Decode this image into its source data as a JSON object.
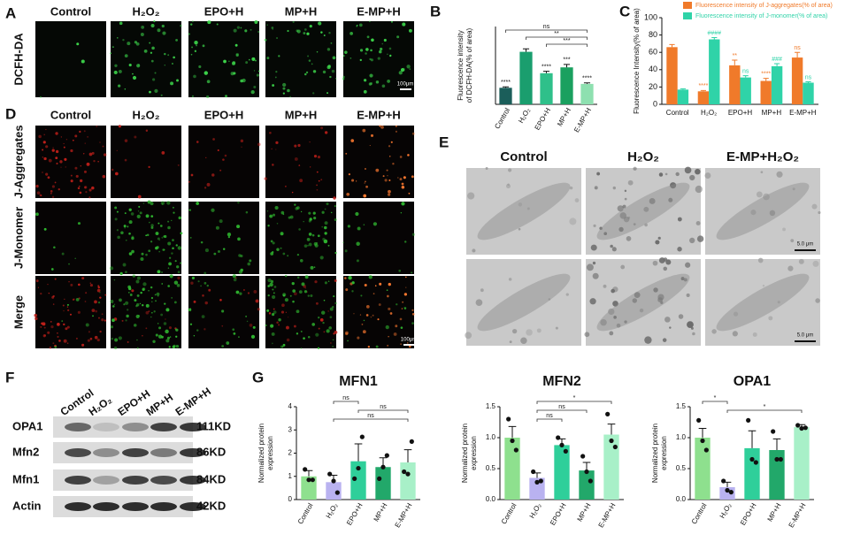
{
  "figure": {
    "panel_labels": [
      "A",
      "B",
      "C",
      "D",
      "E",
      "F",
      "G"
    ],
    "panel_a": {
      "columns": [
        "Control",
        "H₂O₂",
        "EPO+H",
        "MP+H",
        "E-MP+H"
      ],
      "row_label": "DCFH-DA",
      "scale_bar": "100μm"
    },
    "panel_d": {
      "columns": [
        "Control",
        "H₂O₂",
        "EPO+H",
        "MP+H",
        "E-MP+H"
      ],
      "rows": [
        "J-Aggregates",
        "J-Monomer",
        "Merge"
      ],
      "scale_bar": "100μm"
    },
    "panel_e": {
      "columns": [
        "Control",
        "H₂O₂",
        "E-MP+H₂O₂"
      ],
      "scale_bars": [
        "5.0 μm",
        "5.0 μm"
      ]
    },
    "panel_f": {
      "columns": [
        "Control",
        "H₂O₂",
        "EPO+H",
        "MP+H",
        "E-MP+H"
      ],
      "rows": [
        "OPA1",
        "Mfn2",
        "Mfn1",
        "Actin"
      ],
      "sizes": [
        "111KD",
        "86KD",
        "84KD",
        "42KD"
      ]
    }
  },
  "chart_data": [
    {
      "type": "bar",
      "y_label": [
        "Fluorescence intensity",
        "of DCFH-DA(% of area)"
      ],
      "categories": [
        "Control",
        "H₂O₂",
        "EPO+H",
        "MP+H",
        "E-MP+H"
      ],
      "values": [
        17,
        54,
        32,
        38,
        21
      ],
      "errors": [
        1,
        3,
        2,
        3,
        1
      ],
      "colors": [
        "#1b5e5a",
        "#1a9e6e",
        "#2fc08a",
        "#1aa05f",
        "#8ee0b0"
      ],
      "significance": [
        "****",
        null,
        "****",
        "***",
        "****"
      ],
      "comparisons": [
        {
          "pair": [
            0,
            4
          ],
          "label": "ns"
        },
        {
          "pair": [
            1,
            4
          ],
          "label": "**"
        },
        {
          "pair": [
            2,
            4
          ],
          "label": "***"
        }
      ],
      "ylim": [
        0,
        80
      ]
    },
    {
      "type": "bar",
      "y_label": [
        "Fluorescence Intensity(% of area)"
      ],
      "categories": [
        "Control",
        "H₂O₂",
        "EPO+H",
        "MP+H",
        "E-MP+H"
      ],
      "series": [
        {
          "name": "Fluorescence intensity of J-aggregates(% of area)",
          "color": "#f07a2a",
          "values": [
            66,
            15,
            45,
            27,
            54
          ],
          "errors": [
            3,
            1,
            6,
            3,
            6
          ],
          "significance": [
            null,
            "****",
            "**",
            "****",
            "ns"
          ]
        },
        {
          "name": "Fluorescence intensity of J-monomer(% of area)",
          "color": "#2fd3a8",
          "values": [
            17,
            75,
            31,
            44,
            25
          ],
          "errors": [
            1,
            2,
            2,
            3,
            1
          ],
          "significance": [
            null,
            "####",
            "ns",
            "###",
            "ns"
          ]
        }
      ],
      "ylim": [
        0,
        100
      ],
      "yticks": [
        0,
        20,
        40,
        60,
        80,
        100
      ]
    },
    {
      "type": "bar",
      "title": "MFN1",
      "y_label": [
        "Normalized protein",
        "expression"
      ],
      "categories": [
        "Control",
        "H₂O₂",
        "EPO+H",
        "MP+H",
        "E-MP+H"
      ],
      "values": [
        1.0,
        0.75,
        1.65,
        1.4,
        1.6
      ],
      "errors": [
        0.25,
        0.3,
        0.75,
        0.4,
        0.55
      ],
      "points": [
        [
          1.3,
          0.85,
          0.85
        ],
        [
          1.1,
          0.8,
          0.3
        ],
        [
          0.9,
          1.35,
          2.7
        ],
        [
          0.9,
          1.4,
          1.9
        ],
        [
          1.2,
          1.1,
          2.5
        ]
      ],
      "colors": [
        "#8ee08e",
        "#b9b2f0",
        "#2fcf9a",
        "#22a86a",
        "#a8f0c8"
      ],
      "comparisons": [
        {
          "pair": [
            1,
            2
          ],
          "label": "ns"
        },
        {
          "pair": [
            2,
            4
          ],
          "label": "ns"
        },
        {
          "pair": [
            1,
            4
          ],
          "label": "ns"
        }
      ],
      "ylim": [
        0,
        4
      ],
      "yticks": [
        0,
        1,
        2,
        3,
        4
      ]
    },
    {
      "type": "bar",
      "title": "MFN2",
      "y_label": [
        "Normalized protein",
        "expression"
      ],
      "categories": [
        "Control",
        "H₂O₂",
        "EPO+H",
        "MP+H",
        "E-MP+H"
      ],
      "values": [
        1.0,
        0.35,
        0.88,
        0.47,
        1.05
      ],
      "errors": [
        0.18,
        0.08,
        0.1,
        0.13,
        0.17
      ],
      "points": [
        [
          1.3,
          0.95,
          0.8
        ],
        [
          0.45,
          0.28,
          0.3
        ],
        [
          1.0,
          0.88,
          0.78
        ],
        [
          0.7,
          0.45,
          0.3
        ],
        [
          1.38,
          0.95,
          0.85
        ]
      ],
      "colors": [
        "#8ee08e",
        "#b9b2f0",
        "#2fcf9a",
        "#22a86a",
        "#a8f0c8"
      ],
      "comparisons": [
        {
          "pair": [
            1,
            4
          ],
          "label": "*"
        },
        {
          "pair": [
            1,
            3
          ],
          "label": "ns"
        },
        {
          "pair": [
            1,
            2
          ],
          "label": "ns"
        }
      ],
      "ylim": [
        0,
        1.5
      ],
      "yticks": [
        {
          "value": 0,
          "label": "0.0"
        },
        0.5,
        {
          "value": 1,
          "label": "1.0"
        },
        1.5
      ]
    },
    {
      "type": "bar",
      "title": "OPA1",
      "y_label": [
        "Normalized protein",
        "expression"
      ],
      "categories": [
        "Control",
        "H₂O₂",
        "EPO+H",
        "MP+H",
        "E-MP+H"
      ],
      "values": [
        1.0,
        0.2,
        0.83,
        0.8,
        1.17
      ],
      "errors": [
        0.15,
        0.08,
        0.28,
        0.18,
        0.04
      ],
      "points": [
        [
          1.28,
          0.95,
          0.8
        ],
        [
          0.3,
          0.15,
          0.12
        ],
        [
          1.28,
          0.65,
          0.6
        ],
        [
          1.1,
          0.65,
          0.65
        ],
        [
          1.2,
          1.15,
          1.16
        ]
      ],
      "colors": [
        "#8ee08e",
        "#b9b2f0",
        "#2fcf9a",
        "#22a86a",
        "#a8f0c8"
      ],
      "comparisons": [
        {
          "pair": [
            0,
            1
          ],
          "label": "*"
        },
        {
          "pair": [
            1,
            4
          ],
          "label": "*"
        }
      ],
      "ylim": [
        0,
        1.5
      ],
      "yticks": [
        {
          "value": 0,
          "label": "0.0"
        },
        0.5,
        {
          "value": 1,
          "label": "1.0"
        },
        1.5
      ]
    }
  ]
}
